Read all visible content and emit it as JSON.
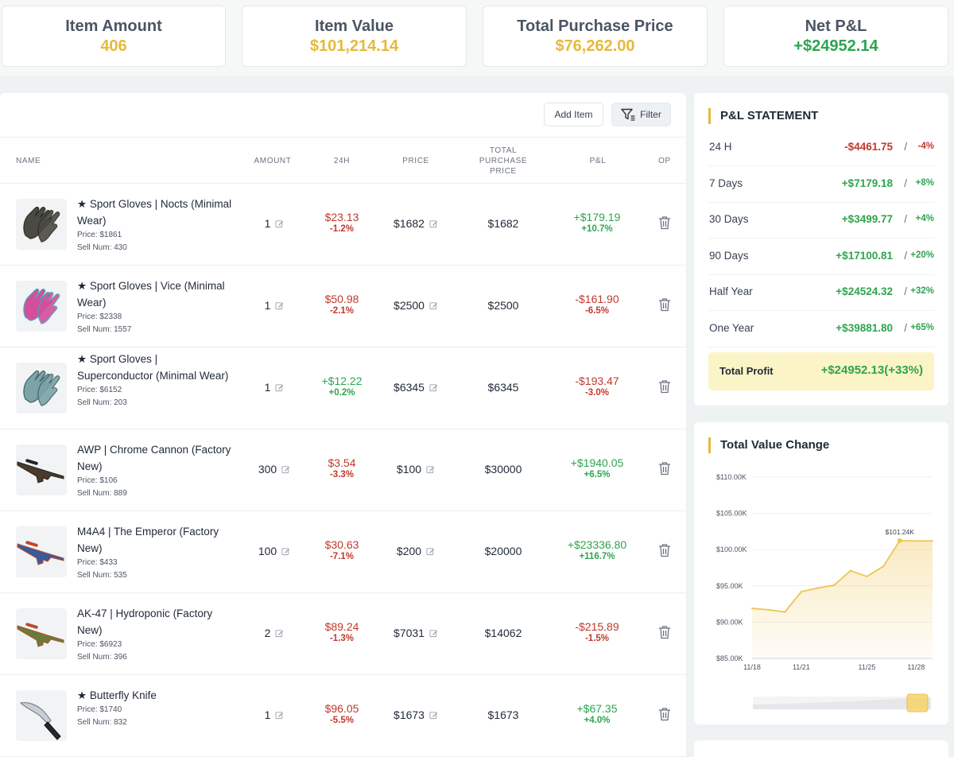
{
  "stats": [
    {
      "title": "Item Amount",
      "value": "406",
      "color": "#e7b93a"
    },
    {
      "title": "Item Value",
      "value": "$101,214.14",
      "color": "#e7b93a"
    },
    {
      "title": "Total Purchase Price",
      "value": "$76,262.00",
      "color": "#e7b93a"
    },
    {
      "title": "Net P&L",
      "value": "+$24952.14",
      "color": "#2ea44f"
    }
  ],
  "toolbar": {
    "add_label": "Add Item",
    "filter_label": "Filter"
  },
  "columns": {
    "name": "NAME",
    "amount": "AMOUNT",
    "h24": "24H",
    "price": "PRICE",
    "total": "TOTAL PURCHASE PRICE",
    "pl": "P&L",
    "op": "OP"
  },
  "items": [
    {
      "name": "★ Sport Gloves | Nocts (Minimal Wear)",
      "price_info": "Price: $1861",
      "sell_num": "Sell Num: 430",
      "amount": "1",
      "h24": "$23.13",
      "h24_pct": "-1.2%",
      "h24_dir": "neg",
      "price": "$1682",
      "total": "$1682",
      "pl": "+$179.19",
      "pl_pct": "+10.7%",
      "pl_dir": "pos",
      "icon": "gloves-icon"
    },
    {
      "name": "★ Sport Gloves | Vice (Minimal Wear)",
      "price_info": "Price: $2338",
      "sell_num": "Sell Num: 1557",
      "amount": "1",
      "h24": "$50.98",
      "h24_pct": "-2.1%",
      "h24_dir": "neg",
      "price": "$2500",
      "total": "$2500",
      "pl": "-$161.90",
      "pl_pct": "-6.5%",
      "pl_dir": "neg",
      "icon": "gloves-icon"
    },
    {
      "name": "★ Sport Gloves | Superconductor (Minimal Wear)",
      "price_info": "Price: $6152",
      "sell_num": "Sell Num: 203",
      "amount": "1",
      "h24": "+$12.22",
      "h24_pct": "+0.2%",
      "h24_dir": "pos",
      "price": "$6345",
      "total": "$6345",
      "pl": "-$193.47",
      "pl_pct": "-3.0%",
      "pl_dir": "neg",
      "icon": "gloves-icon"
    },
    {
      "name": "AWP | Chrome Cannon (Factory New)",
      "price_info": "Price: $106",
      "sell_num": "Sell Num: 889",
      "amount": "300",
      "h24": "$3.54",
      "h24_pct": "-3.3%",
      "h24_dir": "neg",
      "price": "$100",
      "total": "$30000",
      "pl": "+$1940.05",
      "pl_pct": "+6.5%",
      "pl_dir": "pos",
      "icon": "rifle-icon"
    },
    {
      "name": "M4A4 | The Emperor (Factory New)",
      "price_info": "Price: $433",
      "sell_num": "Sell Num: 535",
      "amount": "100",
      "h24": "$30.63",
      "h24_pct": "-7.1%",
      "h24_dir": "neg",
      "price": "$200",
      "total": "$20000",
      "pl": "+$23336.80",
      "pl_pct": "+116.7%",
      "pl_dir": "pos",
      "icon": "rifle-icon"
    },
    {
      "name": "AK-47 | Hydroponic (Factory New)",
      "price_info": "Price: $6923",
      "sell_num": "Sell Num: 396",
      "amount": "2",
      "h24": "$89.24",
      "h24_pct": "-1.3%",
      "h24_dir": "neg",
      "price": "$7031",
      "total": "$14062",
      "pl": "-$215.89",
      "pl_pct": "-1.5%",
      "pl_dir": "neg",
      "icon": "rifle-icon"
    },
    {
      "name": "★ Butterfly Knife",
      "price_info": "Price: $1740",
      "sell_num": "Sell Num: 832",
      "amount": "1",
      "h24": "$96.05",
      "h24_pct": "-5.5%",
      "h24_dir": "neg",
      "price": "$1673",
      "total": "$1673",
      "pl": "+$67.35",
      "pl_pct": "+4.0%",
      "pl_dir": "pos",
      "icon": "knife-icon"
    }
  ],
  "pl_statement": {
    "title": "P&L STATEMENT",
    "rows": [
      {
        "label": "24 H",
        "amount": "-$4461.75",
        "sep": "/",
        "pct": "-4%",
        "dir": "neg"
      },
      {
        "label": "7 Days",
        "amount": "+$7179.18",
        "sep": "/",
        "pct": "+8%",
        "dir": "pos"
      },
      {
        "label": "30 Days",
        "amount": "+$3499.77",
        "sep": "/",
        "pct": "+4%",
        "dir": "pos"
      },
      {
        "label": "90 Days",
        "amount": "+$17100.81",
        "sep": "/",
        "pct": "+20%",
        "dir": "pos"
      },
      {
        "label": "Half Year",
        "amount": "+$24524.32",
        "sep": "/",
        "pct": "+32%",
        "dir": "pos"
      },
      {
        "label": "One Year",
        "amount": "+$39881.80",
        "sep": "/",
        "pct": "+65%",
        "dir": "pos"
      }
    ],
    "total_label": "Total Profit",
    "total_value": "+$24952.13(+33%)"
  },
  "chart_title": "Total Value Change",
  "chart_data": {
    "type": "area",
    "title": "Total Value Change",
    "x": [
      "11/18",
      "11/19",
      "11/20",
      "11/21",
      "11/22",
      "11/23",
      "11/24",
      "11/25",
      "11/26",
      "11/27",
      "11/28",
      "11/29"
    ],
    "values": [
      91.9,
      91.7,
      91.4,
      94.2,
      94.7,
      95.1,
      97.1,
      96.3,
      97.7,
      101.24,
      101.2,
      101.2
    ],
    "x_tick_labels": [
      "11/18",
      "11/21",
      "11/25",
      "11/28"
    ],
    "y_tick_labels": [
      "$110.00K",
      "$105.00K",
      "$100.00K",
      "$95.00K",
      "$90.00K",
      "$85.00K"
    ],
    "ylim": [
      85,
      110
    ],
    "peak_label": "$101.24K",
    "color": "#f0c453",
    "grid": true
  }
}
